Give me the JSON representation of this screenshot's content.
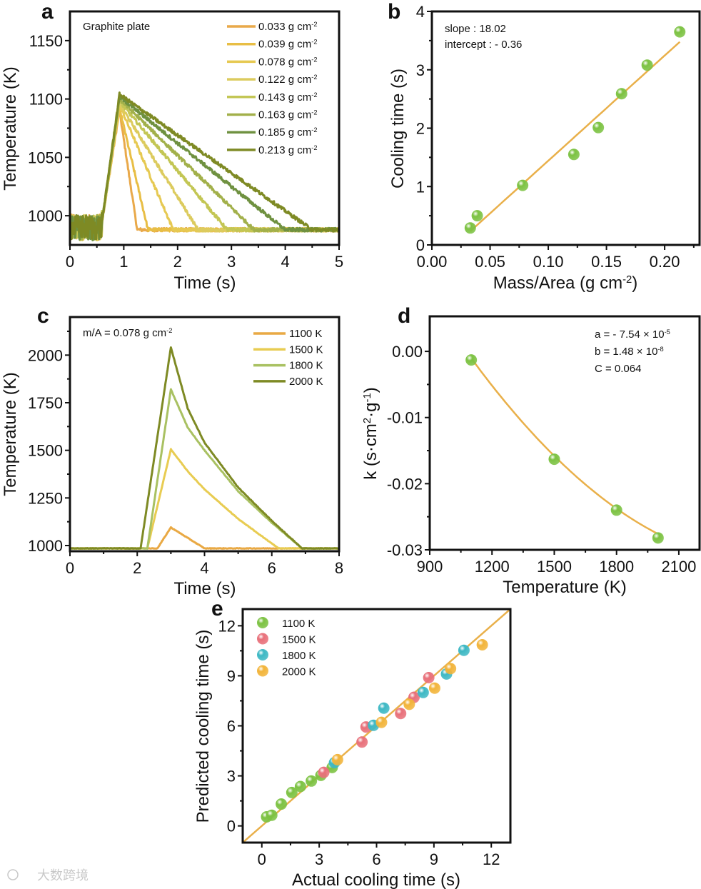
{
  "watermark": "大数跨境",
  "chart_data": [
    {
      "panel": "a",
      "type": "line",
      "annotation": "Graphite plate",
      "xlabel": [
        "Time (s)"
      ],
      "ylabel": [
        "Temperature (K)"
      ],
      "xlim": [
        0,
        5
      ],
      "ylim": [
        975,
        1175
      ],
      "x_ticks": [
        0,
        1,
        2,
        3,
        4,
        5
      ],
      "y_ticks": [
        1000,
        1050,
        1100,
        1150
      ],
      "tick_decimals": [
        0,
        0
      ],
      "legend": "top-right",
      "series": [
        {
          "name": [
            "0.033 g cm",
            {
              "sup": "-2"
            }
          ],
          "color": "#E9A94A",
          "points": [
            [
              0,
              990
            ],
            [
              0.58,
              990
            ],
            [
              0.92,
              1090
            ],
            [
              1.25,
              988
            ],
            [
              5,
              988
            ]
          ]
        },
        {
          "name": [
            "0.039 g cm",
            {
              "sup": "-2"
            }
          ],
          "color": "#E8BE45",
          "points": [
            [
              0,
              990
            ],
            [
              0.58,
              990
            ],
            [
              0.92,
              1092
            ],
            [
              1.45,
              988
            ],
            [
              5,
              988
            ]
          ]
        },
        {
          "name": [
            "0.078 g cm",
            {
              "sup": "-2"
            }
          ],
          "color": "#E6C952",
          "points": [
            [
              0,
              990
            ],
            [
              0.58,
              990
            ],
            [
              0.92,
              1095
            ],
            [
              1.92,
              988
            ],
            [
              5,
              988
            ]
          ]
        },
        {
          "name": [
            "0.122 g cm",
            {
              "sup": "-2"
            }
          ],
          "color": "#DCCB5E",
          "points": [
            [
              0,
              990
            ],
            [
              0.58,
              990
            ],
            [
              0.92,
              1096
            ],
            [
              2.38,
              988
            ],
            [
              5,
              988
            ]
          ]
        },
        {
          "name": [
            "0.143 g cm",
            {
              "sup": "-2"
            }
          ],
          "color": "#C3C654",
          "points": [
            [
              0,
              990
            ],
            [
              0.58,
              990
            ],
            [
              0.92,
              1098
            ],
            [
              2.92,
              988
            ],
            [
              5,
              988
            ]
          ]
        },
        {
          "name": [
            "0.163 g cm",
            {
              "sup": "-2"
            }
          ],
          "color": "#A2B04A",
          "points": [
            [
              0,
              990
            ],
            [
              0.58,
              990
            ],
            [
              0.92,
              1100
            ],
            [
              3.42,
              988
            ],
            [
              5,
              988
            ]
          ]
        },
        {
          "name": [
            "0.185 g cm",
            {
              "sup": "-2"
            }
          ],
          "color": "#6F9140",
          "points": [
            [
              0,
              990
            ],
            [
              0.58,
              990
            ],
            [
              0.92,
              1102
            ],
            [
              4.0,
              988
            ],
            [
              5,
              988
            ]
          ]
        },
        {
          "name": [
            "0.213 g cm",
            {
              "sup": "-2"
            }
          ],
          "color": "#7E8A24",
          "points": [
            [
              0,
              990
            ],
            [
              0.58,
              990
            ],
            [
              0.92,
              1104
            ],
            [
              4.5,
              988
            ],
            [
              5,
              988
            ]
          ]
        }
      ]
    },
    {
      "panel": "b",
      "type": "scatter",
      "annotations": [
        "slope : 18.02",
        "intercept : - 0.36"
      ],
      "xlabel": [
        "Mass/Area  (g cm",
        {
          "sup": "-2"
        },
        ")"
      ],
      "ylabel": [
        "Cooling time (s)"
      ],
      "xlim": [
        0,
        0.23
      ],
      "ylim": [
        0,
        4
      ],
      "x_ticks": [
        0,
        0.05,
        0.1,
        0.15,
        0.2
      ],
      "y_ticks": [
        0,
        1,
        2,
        3,
        4
      ],
      "tick_decimals": [
        2,
        0
      ],
      "point_color": "#7CC242",
      "x": [
        0.033,
        0.039,
        0.078,
        0.122,
        0.143,
        0.163,
        0.185,
        0.213
      ],
      "y": [
        0.29,
        0.5,
        1.02,
        1.55,
        2.01,
        2.59,
        3.08,
        3.65
      ],
      "fit": {
        "slope": 18.02,
        "intercept": -0.36,
        "x_range": [
          0.033,
          0.213
        ],
        "color": "#E9B04A"
      }
    },
    {
      "panel": "c",
      "type": "line",
      "annotation": [
        "m/A = 0.078 g cm",
        {
          "sup": "-2"
        }
      ],
      "xlabel": [
        "Time (s)"
      ],
      "ylabel": [
        "Temperature (K)"
      ],
      "xlim": [
        0,
        8
      ],
      "ylim": [
        970,
        2200
      ],
      "x_ticks": [
        0,
        2,
        4,
        6,
        8
      ],
      "y_ticks": [
        1000,
        1250,
        1500,
        1750,
        2000
      ],
      "tick_decimals": [
        0,
        0
      ],
      "legend": "top-right",
      "series": [
        {
          "name": [
            "1100 K"
          ],
          "color": "#E9A944",
          "points": [
            [
              0,
              985
            ],
            [
              2.6,
              985
            ],
            [
              3.0,
              1095
            ],
            [
              4.0,
              985
            ],
            [
              8,
              985
            ]
          ]
        },
        {
          "name": [
            "1500 K"
          ],
          "color": "#E8CC52",
          "points": [
            [
              0,
              985
            ],
            [
              2.3,
              985
            ],
            [
              3.0,
              1505
            ],
            [
              3.5,
              1390
            ],
            [
              4,
              1295
            ],
            [
              5,
              1140
            ],
            [
              6.2,
              985
            ],
            [
              8,
              985
            ]
          ]
        },
        {
          "name": [
            "1800 K"
          ],
          "color": "#A9C162",
          "points": [
            [
              0,
              985
            ],
            [
              2.3,
              985
            ],
            [
              3.0,
              1820
            ],
            [
              3.5,
              1620
            ],
            [
              4,
              1500
            ],
            [
              5,
              1285
            ],
            [
              6,
              1120
            ],
            [
              6.9,
              985
            ],
            [
              8,
              985
            ]
          ]
        },
        {
          "name": [
            "2000 K"
          ],
          "color": "#7E8A24",
          "points": [
            [
              0,
              985
            ],
            [
              2.1,
              985
            ],
            [
              3.0,
              2040
            ],
            [
              3.5,
              1720
            ],
            [
              4,
              1540
            ],
            [
              5,
              1305
            ],
            [
              6,
              1130
            ],
            [
              6.9,
              985
            ],
            [
              8,
              985
            ]
          ]
        }
      ]
    },
    {
      "panel": "d",
      "type": "scatter",
      "annotations": [
        [
          "a = - 7.54 × 10",
          {
            "sup": "-5"
          }
        ],
        [
          "b = 1.48 × 10",
          {
            "sup": "-8"
          }
        ],
        [
          "C = 0.064"
        ]
      ],
      "xlabel": [
        "Temperature (K)"
      ],
      "ylabel": [
        "k (s·cm",
        {
          "sup": "2"
        },
        "·g",
        {
          "sup": "-1"
        },
        ")"
      ],
      "xlim": [
        900,
        2200
      ],
      "ylim": [
        -0.03,
        0.0053
      ],
      "x_ticks": [
        900,
        1200,
        1500,
        1800,
        2100
      ],
      "y_ticks": [
        0.0,
        -0.01,
        -0.02,
        -0.03
      ],
      "tick_decimals": [
        0,
        2
      ],
      "point_color": "#7CC242",
      "x": [
        1100,
        1500,
        1800,
        2000
      ],
      "y": [
        -0.0013,
        -0.0163,
        -0.024,
        -0.0282
      ],
      "fit": {
        "model": "k = a*T + b*T^2 + C",
        "a": -7.54e-05,
        "b": 1.48e-08,
        "C": 0.064,
        "x_range": [
          1100,
          2000
        ],
        "color": "#E9B04A"
      }
    },
    {
      "panel": "e",
      "type": "scatter",
      "xlabel": [
        "Actual cooling time (s)"
      ],
      "ylabel": [
        "Predicted cooling time (s)"
      ],
      "xlim": [
        -1,
        13
      ],
      "ylim": [
        -1,
        13
      ],
      "x_ticks": [
        0,
        3,
        6,
        9,
        12
      ],
      "y_ticks": [
        0,
        3,
        6,
        9,
        12
      ],
      "tick_decimals": [
        0,
        0
      ],
      "legend": "top-left",
      "reference_line": {
        "label": "y = x",
        "color": "#E9B04A"
      },
      "series": [
        {
          "name": "1100 K",
          "color": "#7CC242",
          "x": [
            0.25,
            0.52,
            1.02,
            1.57,
            2.02,
            2.59,
            3.09,
            3.68
          ],
          "y": [
            0.54,
            0.64,
            1.31,
            2.0,
            2.36,
            2.69,
            3.03,
            3.5
          ]
        },
        {
          "name": "1500 K",
          "color": "#E8707A",
          "x": [
            3.24,
            5.24,
            5.45,
            7.26,
            7.96,
            8.73
          ],
          "y": [
            3.21,
            5.03,
            5.93,
            6.74,
            7.71,
            8.89
          ]
        },
        {
          "name": "1800 K",
          "color": "#3DB8C4",
          "x": [
            3.8,
            5.84,
            6.38,
            8.44,
            9.66,
            10.57
          ],
          "y": [
            3.79,
            6.03,
            7.06,
            8.0,
            9.11,
            10.53
          ]
        },
        {
          "name": "2000 K",
          "color": "#F2B43A",
          "x": [
            3.96,
            6.26,
            7.71,
            9.04,
            9.87,
            11.53
          ],
          "y": [
            3.97,
            6.21,
            7.29,
            8.26,
            9.43,
            10.86
          ]
        }
      ]
    }
  ]
}
